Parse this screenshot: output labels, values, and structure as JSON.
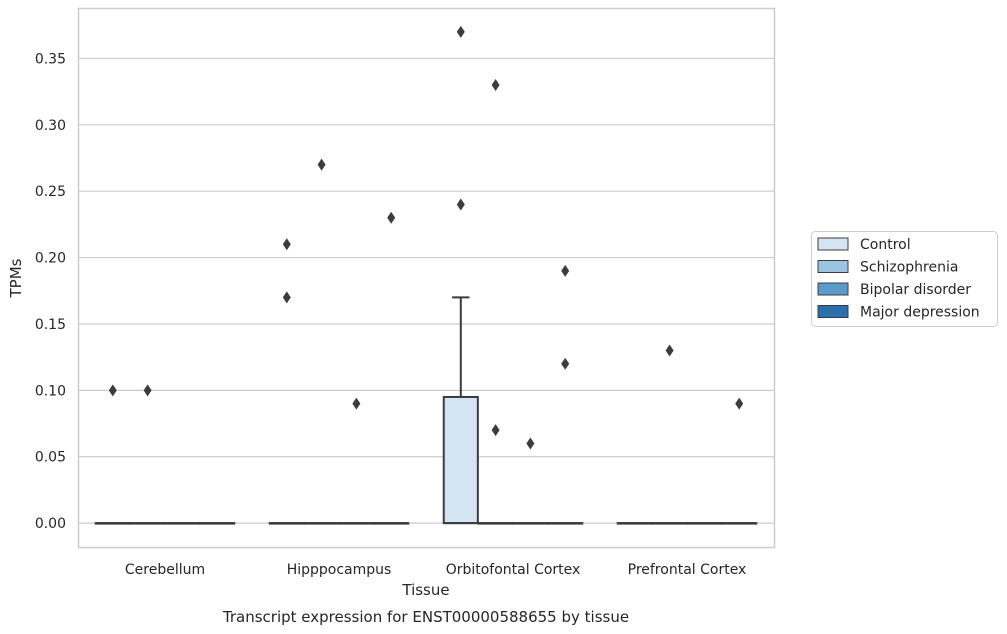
{
  "chart_data": {
    "type": "box",
    "title": "",
    "caption": "Transcript expression for ENST00000588655 by tissue",
    "xlabel": "Tissue",
    "ylabel": "TPMs",
    "ylim": [
      -0.018,
      0.388
    ],
    "yticks": [
      0.0,
      0.05,
      0.1,
      0.15,
      0.2,
      0.25,
      0.3,
      0.35
    ],
    "ytick_labels": [
      "0.00",
      "0.05",
      "0.10",
      "0.15",
      "0.20",
      "0.25",
      "0.30",
      "0.35"
    ],
    "grid": "horizontal",
    "legend_position": "right",
    "categories": [
      "Cerebellum",
      "Hipppocampus",
      "Orbitofontal Cortex",
      "Prefrontal Cortex"
    ],
    "series": [
      {
        "name": "Control",
        "color": "#d5e4f3",
        "boxes": [
          {
            "q1": 0,
            "median": 0,
            "q3": 0,
            "whisker_low": 0,
            "whisker_high": 0,
            "outliers": [
              0.1
            ]
          },
          {
            "q1": 0,
            "median": 0,
            "q3": 0,
            "whisker_low": 0,
            "whisker_high": 0,
            "outliers": [
              0.21,
              0.17
            ]
          },
          {
            "q1": 0,
            "median": 0,
            "q3": 0.095,
            "whisker_low": 0,
            "whisker_high": 0.17,
            "outliers": [
              0.37,
              0.24
            ]
          },
          {
            "q1": 0,
            "median": 0,
            "q3": 0,
            "whisker_low": 0,
            "whisker_high": 0,
            "outliers": []
          }
        ]
      },
      {
        "name": "Schizophrenia",
        "color": "#9ac4df",
        "boxes": [
          {
            "q1": 0,
            "median": 0,
            "q3": 0,
            "whisker_low": 0,
            "whisker_high": 0,
            "outliers": [
              0.1
            ]
          },
          {
            "q1": 0,
            "median": 0,
            "q3": 0,
            "whisker_low": 0,
            "whisker_high": 0,
            "outliers": [
              0.27
            ]
          },
          {
            "q1": 0,
            "median": 0,
            "q3": 0,
            "whisker_low": 0,
            "whisker_high": 0,
            "outliers": [
              0.33,
              0.07
            ]
          },
          {
            "q1": 0,
            "median": 0,
            "q3": 0,
            "whisker_low": 0,
            "whisker_high": 0,
            "outliers": [
              0.13
            ]
          }
        ]
      },
      {
        "name": "Bipolar disorder",
        "color": "#5b9bcb",
        "boxes": [
          {
            "q1": 0,
            "median": 0,
            "q3": 0,
            "whisker_low": 0,
            "whisker_high": 0,
            "outliers": []
          },
          {
            "q1": 0,
            "median": 0,
            "q3": 0,
            "whisker_low": 0,
            "whisker_high": 0,
            "outliers": [
              0.09
            ]
          },
          {
            "q1": 0,
            "median": 0,
            "q3": 0,
            "whisker_low": 0,
            "whisker_high": 0,
            "outliers": [
              0.06
            ]
          },
          {
            "q1": 0,
            "median": 0,
            "q3": 0,
            "whisker_low": 0,
            "whisker_high": 0,
            "outliers": []
          }
        ]
      },
      {
        "name": "Major depression",
        "color": "#2a70ae",
        "boxes": [
          {
            "q1": 0,
            "median": 0,
            "q3": 0,
            "whisker_low": 0,
            "whisker_high": 0,
            "outliers": []
          },
          {
            "q1": 0,
            "median": 0,
            "q3": 0,
            "whisker_low": 0,
            "whisker_high": 0,
            "outliers": [
              0.23
            ]
          },
          {
            "q1": 0,
            "median": 0,
            "q3": 0,
            "whisker_low": 0,
            "whisker_high": 0,
            "outliers": [
              0.19,
              0.12
            ]
          },
          {
            "q1": 0,
            "median": 0,
            "q3": 0,
            "whisker_low": 0,
            "whisker_high": 0,
            "outliers": [
              0.09
            ]
          }
        ]
      }
    ]
  },
  "colors": {
    "grid": "#cccccc",
    "frame": "#cccccc",
    "line": "#3c3c3c",
    "text": "#262626"
  }
}
